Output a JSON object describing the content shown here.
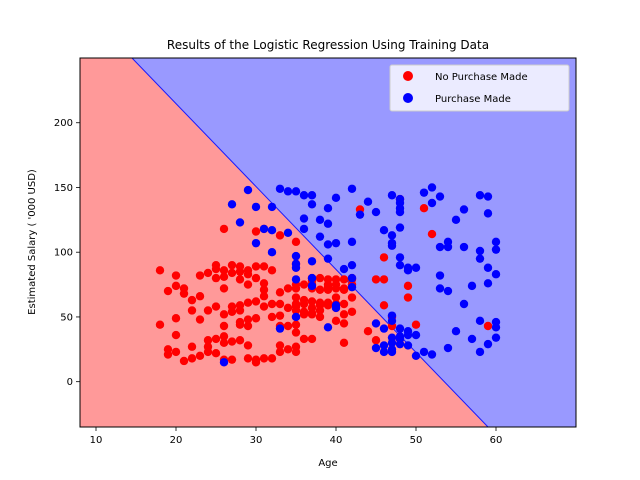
{
  "chart_data": {
    "type": "scatter",
    "title": "Results of the Logistic Regression Using Training Data",
    "xlabel": "Age",
    "ylabel": "Estimated Salary ( '000 USD)",
    "xlim": [
      8,
      70
    ],
    "ylim": [
      -35,
      250
    ],
    "xticks": [
      10,
      20,
      30,
      40,
      50,
      60
    ],
    "yticks": [
      0,
      50,
      100,
      150,
      200
    ],
    "grid": false,
    "legend_placement": "top-right",
    "decision_boundary": {
      "description_points": [
        [
          14.5,
          250
        ],
        [
          59,
          -35
        ]
      ],
      "left_region_color": "#ff9999",
      "right_region_color": "#9999ff",
      "line_color": "#1a1aff"
    },
    "series": [
      {
        "name": "No Purchase Made",
        "color": "#ff0000",
        "points": [
          [
            18,
            86
          ],
          [
            18,
            44
          ],
          [
            19,
            70
          ],
          [
            19,
            25
          ],
          [
            19,
            21
          ],
          [
            20,
            82
          ],
          [
            20,
            74
          ],
          [
            20,
            49
          ],
          [
            20,
            36
          ],
          [
            20,
            23
          ],
          [
            21,
            72
          ],
          [
            21,
            68
          ],
          [
            21,
            16
          ],
          [
            22,
            63
          ],
          [
            22,
            55
          ],
          [
            22,
            27
          ],
          [
            22,
            18
          ],
          [
            23,
            82
          ],
          [
            23,
            66
          ],
          [
            23,
            48
          ],
          [
            23,
            20
          ],
          [
            24,
            84
          ],
          [
            24,
            55
          ],
          [
            24,
            32
          ],
          [
            24,
            27
          ],
          [
            24,
            23
          ],
          [
            25,
            90
          ],
          [
            25,
            87
          ],
          [
            25,
            80
          ],
          [
            25,
            58
          ],
          [
            25,
            33
          ],
          [
            25,
            22
          ],
          [
            26,
            86
          ],
          [
            26,
            81
          ],
          [
            26,
            72
          ],
          [
            26,
            52
          ],
          [
            26,
            43
          ],
          [
            26,
            35
          ],
          [
            26,
            30
          ],
          [
            26,
            17
          ],
          [
            26,
            118
          ],
          [
            27,
            90
          ],
          [
            27,
            84
          ],
          [
            27,
            58
          ],
          [
            27,
            54
          ],
          [
            27,
            31
          ],
          [
            27,
            17
          ],
          [
            28,
            89
          ],
          [
            28,
            85
          ],
          [
            28,
            79
          ],
          [
            28,
            59
          ],
          [
            28,
            55
          ],
          [
            28,
            46
          ],
          [
            28,
            44
          ],
          [
            28,
            32
          ],
          [
            29,
            86
          ],
          [
            29,
            83
          ],
          [
            29,
            75
          ],
          [
            29,
            61
          ],
          [
            29,
            48
          ],
          [
            29,
            43
          ],
          [
            29,
            28
          ],
          [
            29,
            18
          ],
          [
            30,
            116
          ],
          [
            30,
            89
          ],
          [
            30,
            80
          ],
          [
            30,
            62
          ],
          [
            30,
            49
          ],
          [
            30,
            17
          ],
          [
            30,
            15
          ],
          [
            31,
            89
          ],
          [
            31,
            76
          ],
          [
            31,
            71
          ],
          [
            31,
            66
          ],
          [
            31,
            58
          ],
          [
            31,
            18
          ],
          [
            31,
            118
          ],
          [
            32,
            86
          ],
          [
            32,
            60
          ],
          [
            32,
            50
          ],
          [
            32,
            18
          ],
          [
            33,
            69
          ],
          [
            33,
            60
          ],
          [
            33,
            51
          ],
          [
            33,
            43
          ],
          [
            33,
            28
          ],
          [
            33,
            23
          ],
          [
            33,
            113
          ],
          [
            34,
            72
          ],
          [
            34,
            57
          ],
          [
            34,
            43
          ],
          [
            34,
            25
          ],
          [
            35,
            108
          ],
          [
            35,
            91
          ],
          [
            35,
            75
          ],
          [
            35,
            72
          ],
          [
            35,
            65
          ],
          [
            35,
            60
          ],
          [
            35,
            58
          ],
          [
            35,
            55
          ],
          [
            35,
            50
          ],
          [
            35,
            44
          ],
          [
            35,
            38
          ],
          [
            35,
            27
          ],
          [
            35,
            23
          ],
          [
            36,
            75
          ],
          [
            36,
            63
          ],
          [
            36,
            60
          ],
          [
            36,
            54
          ],
          [
            36,
            52
          ],
          [
            36,
            33
          ],
          [
            37,
            80
          ],
          [
            37,
            78
          ],
          [
            37,
            75
          ],
          [
            37,
            72
          ],
          [
            37,
            62
          ],
          [
            37,
            57
          ],
          [
            37,
            53
          ],
          [
            37,
            52
          ],
          [
            37,
            33
          ],
          [
            38,
            80
          ],
          [
            38,
            71
          ],
          [
            38,
            61
          ],
          [
            38,
            59
          ],
          [
            38,
            55
          ],
          [
            38,
            50
          ],
          [
            39,
            79
          ],
          [
            39,
            75
          ],
          [
            39,
            73
          ],
          [
            39,
            71
          ],
          [
            39,
            61
          ],
          [
            39,
            59
          ],
          [
            40,
            79
          ],
          [
            40,
            75
          ],
          [
            40,
            72
          ],
          [
            40,
            65
          ],
          [
            40,
            60
          ],
          [
            40,
            57
          ],
          [
            40,
            47
          ],
          [
            41,
            79
          ],
          [
            41,
            72
          ],
          [
            41,
            71
          ],
          [
            41,
            60
          ],
          [
            41,
            52
          ],
          [
            41,
            45
          ],
          [
            41,
            30
          ],
          [
            42,
            79
          ],
          [
            42,
            80
          ],
          [
            42,
            75
          ],
          [
            42,
            65
          ],
          [
            42,
            54
          ],
          [
            43,
            133
          ],
          [
            44,
            39
          ],
          [
            45,
            79
          ],
          [
            45,
            32
          ],
          [
            46,
            96
          ],
          [
            46,
            79
          ],
          [
            46,
            59
          ],
          [
            47,
            50
          ],
          [
            47,
            43
          ],
          [
            48,
            141
          ],
          [
            48,
            33
          ],
          [
            49,
            74
          ],
          [
            49,
            65
          ],
          [
            50,
            44
          ],
          [
            51,
            134
          ],
          [
            52,
            114
          ],
          [
            59,
            43
          ]
        ]
      },
      {
        "name": "Purchase Made",
        "color": "#0000ff",
        "points": [
          [
            26,
            15
          ],
          [
            27,
            137
          ],
          [
            28,
            123
          ],
          [
            29,
            148
          ],
          [
            30,
            135
          ],
          [
            30,
            107
          ],
          [
            31,
            118
          ],
          [
            32,
            117
          ],
          [
            32,
            135
          ],
          [
            32,
            100
          ],
          [
            33,
            149
          ],
          [
            33,
            41
          ],
          [
            34,
            147
          ],
          [
            34,
            115
          ],
          [
            35,
            147
          ],
          [
            35,
            97
          ],
          [
            35,
            91
          ],
          [
            35,
            88
          ],
          [
            35,
            79
          ],
          [
            35,
            50
          ],
          [
            36,
            144
          ],
          [
            36,
            126
          ],
          [
            36,
            118
          ],
          [
            37,
            144
          ],
          [
            37,
            137
          ],
          [
            37,
            93
          ],
          [
            37,
            80
          ],
          [
            37,
            74
          ],
          [
            38,
            112
          ],
          [
            38,
            125
          ],
          [
            39,
            134
          ],
          [
            39,
            122
          ],
          [
            39,
            106
          ],
          [
            39,
            95
          ],
          [
            39,
            42
          ],
          [
            40,
            142
          ],
          [
            40,
            107
          ],
          [
            40,
            59
          ],
          [
            40,
            57
          ],
          [
            41,
            87
          ],
          [
            42,
            149
          ],
          [
            42,
            108
          ],
          [
            42,
            90
          ],
          [
            42,
            80
          ],
          [
            42,
            73
          ],
          [
            43,
            129
          ],
          [
            44,
            139
          ],
          [
            45,
            131
          ],
          [
            45,
            45
          ],
          [
            45,
            26
          ],
          [
            46,
            117
          ],
          [
            46,
            41
          ],
          [
            46,
            28
          ],
          [
            46,
            23
          ],
          [
            47,
            144
          ],
          [
            47,
            113
          ],
          [
            47,
            107
          ],
          [
            47,
            105
          ],
          [
            47,
            51
          ],
          [
            47,
            47
          ],
          [
            47,
            34
          ],
          [
            47,
            30
          ],
          [
            47,
            25
          ],
          [
            47,
            23
          ],
          [
            48,
            141
          ],
          [
            48,
            138
          ],
          [
            48,
            134
          ],
          [
            48,
            131
          ],
          [
            48,
            119
          ],
          [
            48,
            96
          ],
          [
            48,
            90
          ],
          [
            48,
            41
          ],
          [
            48,
            35
          ],
          [
            48,
            33
          ],
          [
            48,
            29
          ],
          [
            49,
            88
          ],
          [
            49,
            86
          ],
          [
            49,
            39
          ],
          [
            49,
            36
          ],
          [
            49,
            28
          ],
          [
            50,
            88
          ],
          [
            50,
            36
          ],
          [
            50,
            20
          ],
          [
            51,
            146
          ],
          [
            51,
            23
          ],
          [
            52,
            150
          ],
          [
            52,
            138
          ],
          [
            52,
            21
          ],
          [
            53,
            143
          ],
          [
            53,
            104
          ],
          [
            53,
            82
          ],
          [
            53,
            72
          ],
          [
            54,
            108
          ],
          [
            54,
            104
          ],
          [
            54,
            70
          ],
          [
            54,
            26
          ],
          [
            55,
            125
          ],
          [
            55,
            39
          ],
          [
            56,
            133
          ],
          [
            56,
            104
          ],
          [
            56,
            60
          ],
          [
            57,
            74
          ],
          [
            57,
            33
          ],
          [
            58,
            144
          ],
          [
            58,
            101
          ],
          [
            58,
            95
          ],
          [
            58,
            47
          ],
          [
            58,
            23
          ],
          [
            59,
            88
          ],
          [
            59,
            76
          ],
          [
            59,
            29
          ],
          [
            59,
            130
          ],
          [
            59,
            143
          ],
          [
            60,
            108
          ],
          [
            60,
            102
          ],
          [
            60,
            83
          ],
          [
            60,
            46
          ],
          [
            60,
            42
          ],
          [
            60,
            34
          ]
        ]
      }
    ]
  }
}
